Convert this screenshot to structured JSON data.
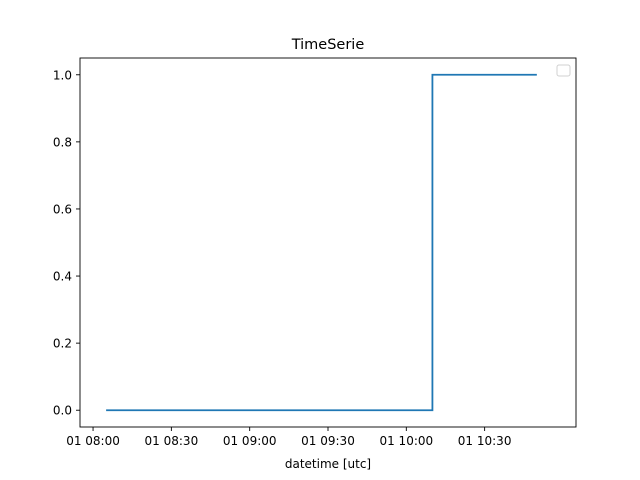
{
  "chart_data": {
    "type": "line",
    "title": "TimeSerie",
    "xlabel": "datetime [utc]",
    "ylabel": "",
    "x_ticks": [
      "01 08:00",
      "01 08:30",
      "01 09:00",
      "01 09:30",
      "01 10:00",
      "01 10:30"
    ],
    "y_ticks": [
      "0.0",
      "0.2",
      "0.4",
      "0.6",
      "0.8",
      "1.0"
    ],
    "xlim": [
      "2000-01-01T07:55:00",
      "2000-01-01T11:05:00"
    ],
    "ylim": [
      -0.05,
      1.05
    ],
    "drawstyle": "steps-post",
    "legend": "upper right (empty)",
    "grid": false,
    "series": [
      {
        "color": "#1f77b4",
        "x": [
          "2000-01-01T08:05:00",
          "2000-01-01T10:10:00",
          "2000-01-01T10:50:00"
        ],
        "values": [
          0,
          1,
          1
        ]
      }
    ]
  }
}
